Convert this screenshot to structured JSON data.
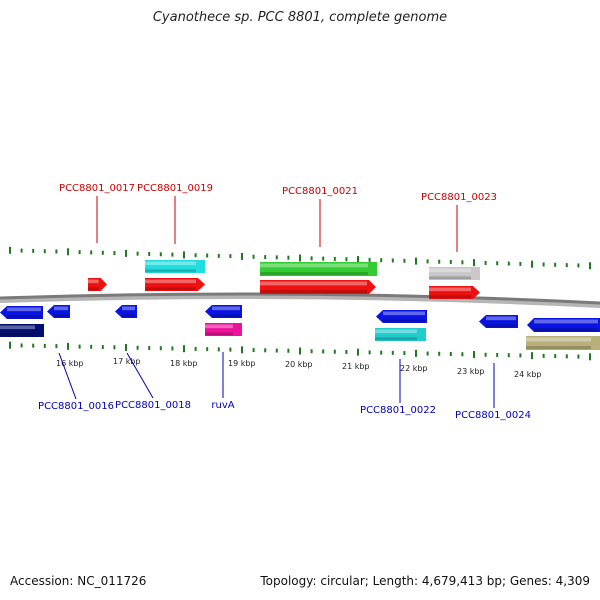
{
  "title": "Cyanothece sp. PCC 8801, complete genome",
  "footer": {
    "accession": "Accession: NC_011726",
    "summary": "Topology: circular; Length: 4,679,413 bp; Genes: 4,309"
  },
  "colors": {
    "top_label": "#cc0000",
    "bottom_label": "#0000bb",
    "backbone": "#7a7a7a",
    "tick": "#1f7a1f"
  },
  "scale_labels": [
    "16 kbp",
    "17 kbp",
    "18 kbp",
    "19 kbp",
    "20 kbp",
    "21 kbp",
    "22 kbp",
    "23 kbp",
    "24 kbp"
  ],
  "features": [
    {
      "id": "f1",
      "color": "#0a14e0",
      "strand": "-"
    },
    {
      "id": "f2",
      "color": "#000f70",
      "strand": "none"
    },
    {
      "id": "f3",
      "color": "#0a14e0",
      "strand": "-"
    },
    {
      "id": "f4",
      "color": "#ee1111",
      "strand": "+"
    },
    {
      "id": "f5",
      "color": "#0a14e0",
      "strand": "-"
    },
    {
      "id": "f6",
      "color": "#22dddd",
      "strand": "none"
    },
    {
      "id": "f7",
      "color": "#ee1111",
      "strand": "+"
    },
    {
      "id": "f8",
      "color": "#0a14e0",
      "strand": "-"
    },
    {
      "id": "f9",
      "color": "#ee1199",
      "strand": "none"
    },
    {
      "id": "f10",
      "color": "#33cc33",
      "strand": "none"
    },
    {
      "id": "f11",
      "color": "#ee1111",
      "strand": "+"
    },
    {
      "id": "f12",
      "color": "#0a14e0",
      "strand": "-"
    },
    {
      "id": "f13",
      "color": "#22cccc",
      "strand": "none"
    },
    {
      "id": "f14",
      "color": "#c8c8c8",
      "strand": "none"
    },
    {
      "id": "f15",
      "color": "#ee1111",
      "strand": "+"
    },
    {
      "id": "f16",
      "color": "#0a14e0",
      "strand": "-"
    },
    {
      "id": "f17",
      "color": "#0a14e0",
      "strand": "-"
    },
    {
      "id": "f18",
      "color": "#b8b07a",
      "strand": "none"
    }
  ],
  "gene_labels": [
    {
      "text": "PCC8801_0017",
      "side": "top"
    },
    {
      "text": "PCC8801_0019",
      "side": "top"
    },
    {
      "text": "PCC8801_0021",
      "side": "top"
    },
    {
      "text": "PCC8801_0023",
      "side": "top"
    },
    {
      "text": "PCC8801_0016",
      "side": "bottom"
    },
    {
      "text": "PCC8801_0018",
      "side": "bottom"
    },
    {
      "text": "ruvA",
      "side": "bottom"
    },
    {
      "text": "PCC8801_0022",
      "side": "bottom"
    },
    {
      "text": "PCC8801_0024",
      "side": "bottom"
    }
  ]
}
